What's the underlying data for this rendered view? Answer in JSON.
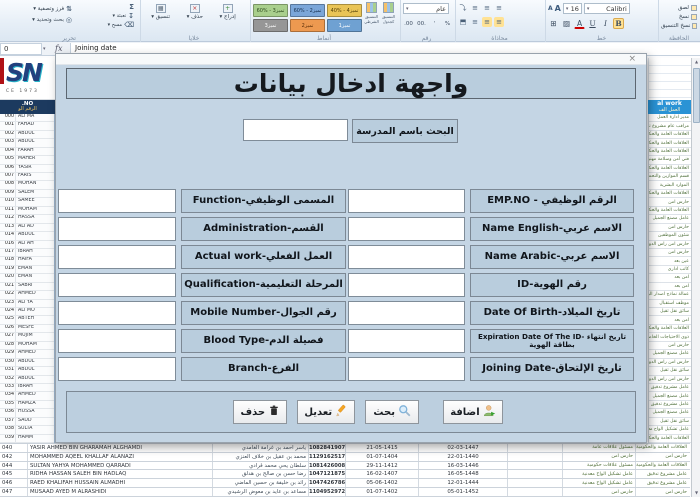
{
  "ribbon": {
    "groups": {
      "clipboard": "الحافظة",
      "font": "خط",
      "alignment": "محاذاة",
      "number": "رقم",
      "styles": "أنماط",
      "cells": "خلايا",
      "editing": "تحرير"
    },
    "clipboard_items": [
      "لصق",
      "نسخ",
      "نسخ التنسيق"
    ],
    "font_name": "Calibri",
    "font_size": "16",
    "number_format": "عام",
    "number_buttons": [
      "%",
      "٬",
      ".00",
      "00."
    ],
    "style_chips": [
      {
        "label": "60% - تميز3",
        "bg": "#a9cf8d",
        "fg": "#2f4d1f"
      },
      {
        "label": "60% - تميز2",
        "bg": "#7ba6d9",
        "fg": "#17304f"
      },
      {
        "label": "40% - تميز4",
        "bg": "#e9c457",
        "fg": "#564208"
      },
      {
        "label": "تميز3",
        "bg": "#969696",
        "fg": "#ffffff"
      },
      {
        "label": "تميز2",
        "bg": "#ed9950",
        "fg": "#5c300a"
      },
      {
        "label": "تميز1",
        "bg": "#6fa1d2",
        "fg": "#ffffff"
      }
    ],
    "style_buttons": [
      "التنسيق الشرطي",
      "التنسيق كجدول"
    ],
    "cells_items": [
      "إدراج",
      "حذف",
      "تنسيق"
    ],
    "sort_items": [
      "فرز وتصفية",
      "بحث وتحديد"
    ],
    "fill_items": [
      "تعبئة",
      "مسح"
    ]
  },
  "formula_bar": {
    "name_box": "0",
    "fx": "fx",
    "value": "Joining date"
  },
  "sheet": {
    "logo": {
      "text": "SN",
      "sub": "CE 1973"
    },
    "left_header": {
      "line1": ".NO",
      "line2": "الرقم الو"
    },
    "right_header": {
      "line1": "al work",
      "line2": "العمل الف"
    },
    "left_rows": [
      [
        "000",
        "ALI MA"
      ],
      [
        "001",
        "FAHAD"
      ],
      [
        "002",
        "ABDUL"
      ],
      [
        "003",
        "ABDUL"
      ],
      [
        "004",
        "FARAH"
      ],
      [
        "005",
        "MAHER"
      ],
      [
        "006",
        "YASIR"
      ],
      [
        "007",
        "FARIS"
      ],
      [
        "008",
        "MOHAN"
      ],
      [
        "009",
        "SALEM"
      ],
      [
        "010",
        "SAMEE"
      ],
      [
        "011",
        "MOHAM"
      ],
      [
        "012",
        "HASSA"
      ],
      [
        "013",
        "ALI AD"
      ],
      [
        "014",
        "ABDUL"
      ],
      [
        "016",
        "ALI AH"
      ],
      [
        "017",
        "IBRAH"
      ],
      [
        "018",
        "HAIFA"
      ],
      [
        "019",
        "EMAN"
      ],
      [
        "020",
        "EMAN"
      ],
      [
        "021",
        "SABRI"
      ],
      [
        "022",
        "AHMED"
      ],
      [
        "023",
        "ALI YA"
      ],
      [
        "024",
        "ALI MO"
      ],
      [
        "025",
        "ABTEH"
      ],
      [
        "026",
        "MESFE"
      ],
      [
        "027",
        "MUJIM"
      ],
      [
        "028",
        "MOHAM"
      ],
      [
        "029",
        "AHMED"
      ],
      [
        "030",
        "ABDUL"
      ],
      [
        "031",
        "ABDUL"
      ],
      [
        "032",
        "ABDUL"
      ],
      [
        "033",
        "IBRAH"
      ],
      [
        "034",
        "AHMED"
      ],
      [
        "035",
        "HAMZA"
      ],
      [
        "036",
        "HUSSA"
      ],
      [
        "037",
        "SAUD"
      ],
      [
        "038",
        "SULTA"
      ],
      [
        "039",
        "HAMM"
      ]
    ],
    "work_rows": [
      "مدير ادارة العمل",
      "مراقب عام مشروع تدقيق",
      "العلاقات العامة والحكومية",
      "العلاقات العامة والحكومية",
      "العلاقات العامة والحكومية",
      "فني أمن وسلامة مهنية",
      "العلاقات العامة والحكومية",
      "قسم الموازين والتحصيل",
      "الموارد البشرية",
      "العلاقات العامة والحكومية",
      "حارس امن",
      "العلاقات العامة والحكومية",
      "عامل مصنع الجميل",
      "حارس امن",
      "شئون الموظفين",
      "حارس امن راس الدورة",
      "حارس امن",
      "عين بعد",
      "كاتب اداري",
      "امن بعد",
      "امن بعد",
      "عمالة نماذج اصدار البطاقات",
      "موظف استقبال",
      "سائق نقل ثقيل",
      "امن بعد",
      "العلاقات العامة والحكومية",
      "ذوي الاحتياجات الخاصة",
      "حارس امن",
      "عامل مصنع الجميل",
      "حارس امن راس الدورة",
      "سائق نقل ثقيل",
      "حارس امن راس الدورة",
      "عامل مشروع تدقيق",
      "عامل مصنع الجميل",
      "عامل مشروع تدقيق",
      "عامل مصنع الجميل",
      "سائق نقل ثقيل",
      "عامل تشكيل الواح معدنية",
      "العلاقات العامة والحكومية"
    ],
    "bottom_rows": [
      {
        "no": "040",
        "name_en": "YASIR AHMED BIN GHARAMAH ALGHAMDI",
        "name_ar": "ياسر احمد بن غرامة الغامدي",
        "id": "1082841907",
        "date1": "21-05-1415",
        "date2": "02-03-1447",
        "blank": "",
        "job": "مسئول علاقات عامة",
        "work": "العلاقات العامة والحكومية"
      },
      {
        "no": "042",
        "name_en": "MOHAMMED AQEEL KHALLAF ALANAZI",
        "name_ar": "محمد بن عقيل بن خلاف العنزي",
        "id": "1129162517",
        "date1": "01-07-1404",
        "date2": "22-01-1440",
        "blank": "",
        "job": "حارس امن",
        "work": "حارس امن"
      },
      {
        "no": "044",
        "name_en": "SULTAN YAHYA MOHAMMED QARRADI",
        "name_ar": "سلطان يحي محمد قرادي",
        "id": "1081426008",
        "date1": "29-11-1412",
        "date2": "16-03-1446",
        "blank": "",
        "job": "مسئول علاقات حكومية",
        "work": "العلاقات العامة والحكومية"
      },
      {
        "no": "045",
        "name_en": "RIDHA HASSAN SALEH BIN HADLAQ",
        "name_ar": "رضا حسن بن صالح بن هدلق",
        "id": "1047121875",
        "date1": "16-02-1407",
        "date2": "16-05-1448",
        "blank": "",
        "job": "عامل تشكيل الواح معدنية",
        "work": "عامل مشروع تدقيق"
      },
      {
        "no": "046",
        "name_en": "RAED KHALIFAH HUSSAIN ALMADHI",
        "name_ar": "رائد بن خليفة بن حسين الماضي",
        "id": "1047426786",
        "date1": "05-06-1402",
        "date2": "12-01-1444",
        "blank": "",
        "job": "عامل تشكيل الواح معدنية",
        "work": "عامل مشروع تدقيق"
      },
      {
        "no": "047",
        "name_en": "MUSAAD AYED M ALRASHIDI",
        "name_ar": "مساعد بن عايد بن معوض الرشيدي",
        "id": "1104952972",
        "date1": "01-07-1402",
        "date2": "05-01-1452",
        "blank": "",
        "job": "حارس امن",
        "work": "حارس امن"
      }
    ]
  },
  "dialog": {
    "title": "واجهة ادخال بيانات",
    "close": "×",
    "search_label": "البحث باسم المدرسة",
    "search_value": "",
    "right_fields": [
      {
        "label": "الرقم الوظيفي - EMP.NO",
        "value": ""
      },
      {
        "label": "الاسم عربي-Name English",
        "value": ""
      },
      {
        "label": "الاسم عربي-Name Arabic",
        "value": ""
      },
      {
        "label": "رقم الهوية-ID",
        "value": ""
      },
      {
        "label": "تاريخ الميلاد-Date Of Birth",
        "value": ""
      },
      {
        "label": "تاريخ انتهاء -Expiration Date Of The ID",
        "label2": "بطاقة الهوية",
        "value": ""
      },
      {
        "label": "تاريخ الإلتحاق-Joining Date",
        "value": ""
      }
    ],
    "left_fields": [
      {
        "label": "المسمى الوظيفي-Function",
        "value": ""
      },
      {
        "label": "القسم-Administration",
        "value": ""
      },
      {
        "label": "العمل الفعلي-Actual work",
        "value": ""
      },
      {
        "label": "المرحلة التعليمية-Qualification",
        "value": ""
      },
      {
        "label": "رقم الجوال-Mobile Number",
        "value": ""
      },
      {
        "label": "فصيلة الدم-Blood Type",
        "value": ""
      },
      {
        "label": "الفرع-Branch",
        "value": ""
      }
    ],
    "buttons": [
      {
        "label": "اضافة",
        "icon": "add-user-icon"
      },
      {
        "label": "بحث",
        "icon": "search-icon"
      },
      {
        "label": "تعديل",
        "icon": "edit-icon"
      },
      {
        "label": "حذف",
        "icon": "delete-icon"
      }
    ]
  }
}
